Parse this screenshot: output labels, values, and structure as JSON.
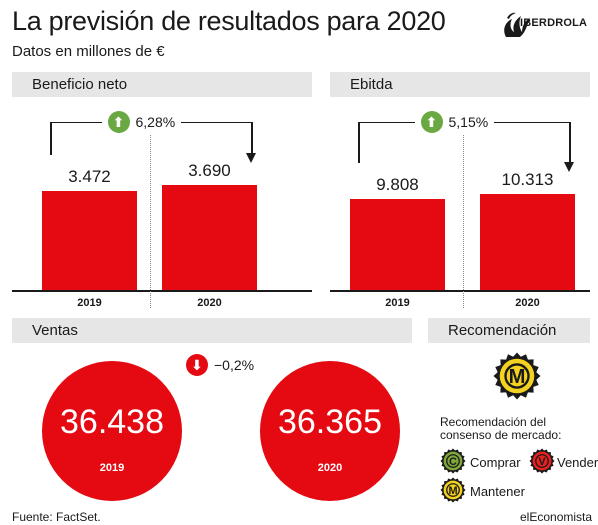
{
  "header": {
    "title": "La previsión de resultados para 2020",
    "subtitle": "Datos en millones de €",
    "brand": "IBERDROLA"
  },
  "colors": {
    "accent_red": "#e50a12",
    "up_green": "#6aa842",
    "panel_gray": "#e6e6e6",
    "mantener_yellow": "#f4d21f",
    "comprar_green": "#7fa83a",
    "vender_red": "#e8201e"
  },
  "chart_data": [
    {
      "type": "bar",
      "title": "Beneficio neto",
      "categories": [
        "2019",
        "2020"
      ],
      "values": [
        3472,
        3690
      ],
      "value_labels": [
        "3.472",
        "3.690"
      ],
      "change_label": "6,28%",
      "change_direction": "up"
    },
    {
      "type": "bar",
      "title": "Ebitda",
      "categories": [
        "2019",
        "2020"
      ],
      "values": [
        9808,
        10313
      ],
      "value_labels": [
        "9.808",
        "10.313"
      ],
      "change_label": "5,15%",
      "change_direction": "up"
    },
    {
      "type": "bubble",
      "title": "Ventas",
      "categories": [
        "2019",
        "2020"
      ],
      "values": [
        36438,
        36365
      ],
      "value_labels": [
        "36.438",
        "36.365"
      ],
      "change_label": "−0,2%",
      "change_direction": "down"
    }
  ],
  "recommendation": {
    "title": "Recomendación",
    "current": "M",
    "legend_title_1": "Recomendación del",
    "legend_title_2": "consenso de mercado:",
    "items": [
      {
        "letter": "C",
        "label": "Comprar"
      },
      {
        "letter": "V",
        "label": "Vender"
      },
      {
        "letter": "M",
        "label": "Mantener"
      }
    ]
  },
  "footer": {
    "source": "Fuente: FactSet.",
    "publisher": "elEconomista"
  }
}
